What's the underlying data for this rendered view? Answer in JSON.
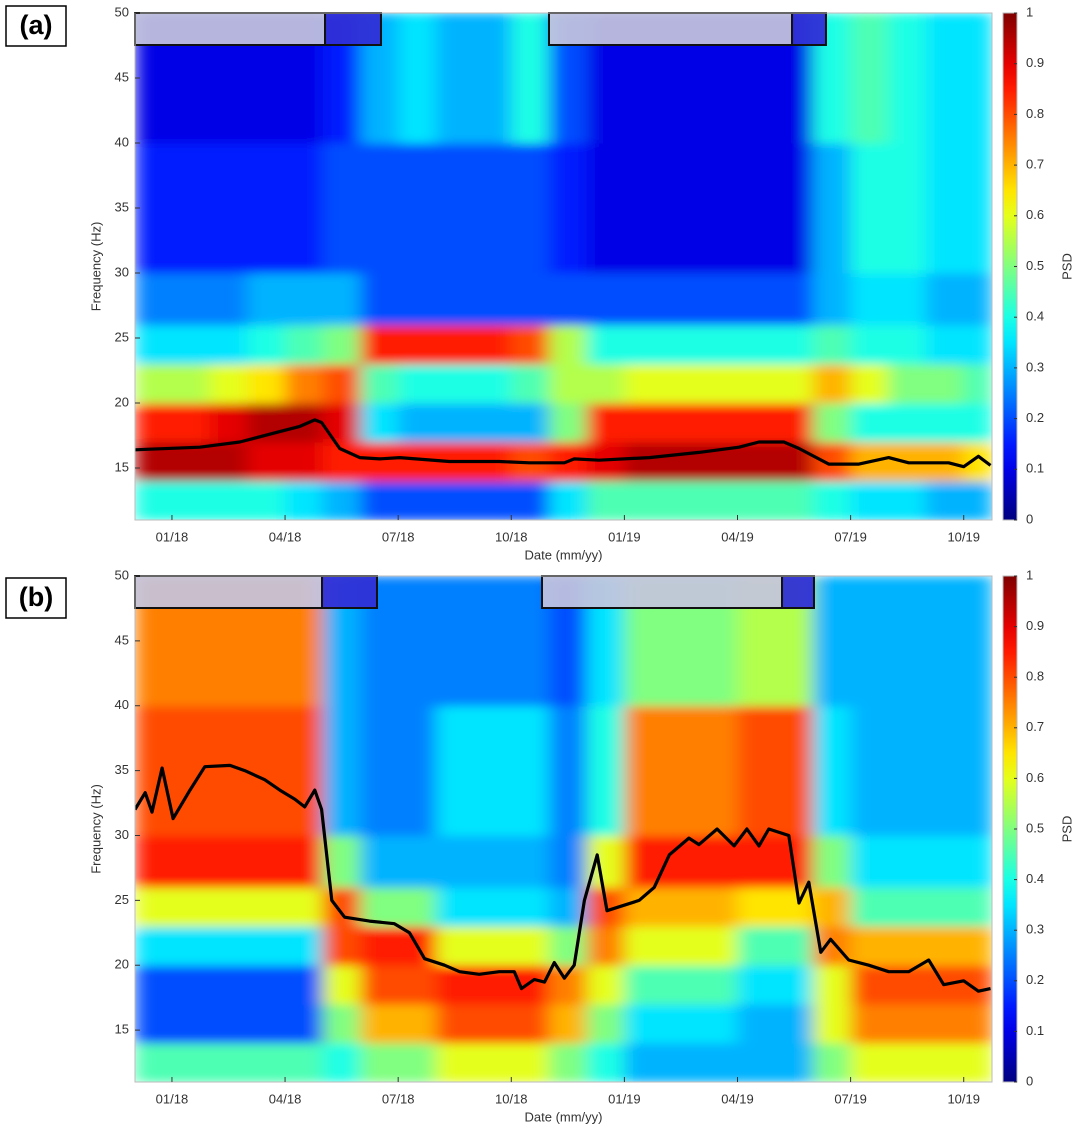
{
  "chart_data": [
    {
      "type": "heatmap",
      "panel_label": "(a)",
      "xlabel": "Date (mm/yy)",
      "ylabel": "Frequency (Hz)",
      "colorbar_label": "PSD",
      "colormap": "jet",
      "xlim": [
        -0.98,
        21.75
      ],
      "ylim": [
        11,
        50
      ],
      "xticks": [
        {
          "value": 0,
          "label": "01/18"
        },
        {
          "value": 3,
          "label": "04/18"
        },
        {
          "value": 6,
          "label": "07/18"
        },
        {
          "value": 9,
          "label": "10/18"
        },
        {
          "value": 12,
          "label": "01/19"
        },
        {
          "value": 15,
          "label": "04/19"
        },
        {
          "value": 18,
          "label": "07/19"
        },
        {
          "value": 21,
          "label": "10/19"
        }
      ],
      "yticks": [
        15,
        20,
        25,
        30,
        35,
        40,
        45,
        50
      ],
      "clim": [
        0,
        1
      ],
      "cticks": [
        0,
        0.1,
        0.2,
        0.3,
        0.4,
        0.5,
        0.6,
        0.7,
        0.8,
        0.9,
        1
      ],
      "x_edges": [
        -0.98,
        0,
        1,
        2,
        3,
        4,
        5,
        6,
        7,
        8,
        9,
        10,
        11,
        12,
        13,
        14,
        15,
        16,
        17,
        18,
        19,
        20,
        21,
        21.75
      ],
      "y_edges": [
        11,
        14,
        17,
        20,
        23,
        26,
        30,
        40,
        50
      ],
      "z": [
        [
          0.4,
          0.95,
          0.85,
          0.55,
          0.35,
          0.25,
          0.15,
          0.1
        ],
        [
          0.4,
          0.95,
          0.85,
          0.55,
          0.35,
          0.25,
          0.15,
          0.1
        ],
        [
          0.4,
          0.95,
          0.9,
          0.6,
          0.35,
          0.25,
          0.15,
          0.1
        ],
        [
          0.4,
          0.9,
          0.95,
          0.65,
          0.4,
          0.3,
          0.15,
          0.1
        ],
        [
          0.35,
          0.9,
          0.95,
          0.75,
          0.45,
          0.3,
          0.15,
          0.1
        ],
        [
          0.3,
          0.85,
          0.9,
          0.8,
          0.5,
          0.3,
          0.2,
          0.15
        ],
        [
          0.2,
          0.85,
          0.35,
          0.45,
          0.85,
          0.2,
          0.2,
          0.3
        ],
        [
          0.2,
          0.85,
          0.3,
          0.4,
          0.85,
          0.2,
          0.2,
          0.35
        ],
        [
          0.2,
          0.85,
          0.3,
          0.4,
          0.85,
          0.2,
          0.2,
          0.3
        ],
        [
          0.2,
          0.85,
          0.3,
          0.4,
          0.85,
          0.2,
          0.2,
          0.3
        ],
        [
          0.2,
          0.8,
          0.3,
          0.45,
          0.8,
          0.2,
          0.2,
          0.4
        ],
        [
          0.35,
          0.85,
          0.5,
          0.55,
          0.55,
          0.2,
          0.15,
          0.2
        ],
        [
          0.45,
          0.9,
          0.85,
          0.55,
          0.4,
          0.2,
          0.1,
          0.1
        ],
        [
          0.45,
          0.95,
          0.85,
          0.6,
          0.4,
          0.2,
          0.1,
          0.1
        ],
        [
          0.45,
          0.95,
          0.85,
          0.6,
          0.4,
          0.2,
          0.1,
          0.1
        ],
        [
          0.45,
          0.95,
          0.85,
          0.6,
          0.4,
          0.2,
          0.1,
          0.1
        ],
        [
          0.45,
          0.95,
          0.85,
          0.6,
          0.4,
          0.2,
          0.1,
          0.1
        ],
        [
          0.45,
          0.95,
          0.85,
          0.6,
          0.4,
          0.2,
          0.1,
          0.1
        ],
        [
          0.4,
          0.8,
          0.5,
          0.7,
          0.45,
          0.3,
          0.3,
          0.4
        ],
        [
          0.35,
          0.7,
          0.4,
          0.6,
          0.4,
          0.35,
          0.4,
          0.45
        ],
        [
          0.35,
          0.7,
          0.4,
          0.5,
          0.4,
          0.35,
          0.4,
          0.4
        ],
        [
          0.3,
          0.7,
          0.4,
          0.5,
          0.35,
          0.3,
          0.35,
          0.35
        ],
        [
          0.3,
          0.65,
          0.4,
          0.45,
          0.35,
          0.3,
          0.35,
          0.35
        ]
      ],
      "series": [
        {
          "color": "#000000",
          "x": [
            -0.98,
            0.74,
            1.8,
            2.86,
            3.39,
            3.79,
            3.97,
            4.45,
            4.98,
            5.51,
            6.04,
            7.36,
            8.68,
            9.48,
            10.41,
            10.67,
            11.33,
            12.66,
            13.98,
            15.04,
            15.57,
            16.23,
            16.63,
            17.42,
            18.22,
            19.01,
            19.54,
            20.6,
            21,
            21.39,
            21.71
          ],
          "values": [
            16.4,
            16.6,
            17,
            17.8,
            18.2,
            18.7,
            18.5,
            16.5,
            15.8,
            15.7,
            15.8,
            15.5,
            15.5,
            15.4,
            15.4,
            15.7,
            15.6,
            15.8,
            16.2,
            16.6,
            17,
            17,
            16.5,
            15.3,
            15.3,
            15.8,
            15.4,
            15.4,
            15.1,
            15.9,
            15.2
          ]
        }
      ]
    },
    {
      "type": "heatmap",
      "panel_label": "(b)",
      "xlabel": "Date (mm/yy)",
      "ylabel": "Frequency (Hz)",
      "colorbar_label": "PSD",
      "colormap": "jet",
      "xlim": [
        -0.98,
        21.75
      ],
      "ylim": [
        11,
        50
      ],
      "xticks": [
        {
          "value": 0,
          "label": "01/18"
        },
        {
          "value": 3,
          "label": "04/18"
        },
        {
          "value": 6,
          "label": "07/18"
        },
        {
          "value": 9,
          "label": "10/18"
        },
        {
          "value": 12,
          "label": "01/19"
        },
        {
          "value": 15,
          "label": "04/19"
        },
        {
          "value": 18,
          "label": "07/19"
        },
        {
          "value": 21,
          "label": "10/19"
        }
      ],
      "yticks": [
        15,
        20,
        25,
        30,
        35,
        40,
        45,
        50
      ],
      "clim": [
        0,
        1
      ],
      "cticks": [
        0,
        0.1,
        0.2,
        0.3,
        0.4,
        0.5,
        0.6,
        0.7,
        0.8,
        0.9,
        1
      ],
      "x_edges": [
        -0.98,
        0,
        1,
        2,
        3,
        4,
        5,
        6,
        7,
        8,
        9,
        10,
        11,
        12,
        13,
        14,
        15,
        16,
        17,
        18,
        19,
        20,
        21,
        21.75
      ],
      "y_edges": [
        11,
        14,
        17,
        20,
        23,
        26,
        30,
        40,
        50
      ],
      "z": [
        [
          0.45,
          0.2,
          0.2,
          0.35,
          0.6,
          0.85,
          0.8,
          0.75
        ],
        [
          0.45,
          0.2,
          0.2,
          0.35,
          0.6,
          0.85,
          0.8,
          0.75
        ],
        [
          0.45,
          0.2,
          0.2,
          0.35,
          0.6,
          0.85,
          0.8,
          0.75
        ],
        [
          0.45,
          0.2,
          0.2,
          0.35,
          0.6,
          0.85,
          0.8,
          0.75
        ],
        [
          0.45,
          0.2,
          0.2,
          0.35,
          0.6,
          0.85,
          0.8,
          0.75
        ],
        [
          0.4,
          0.5,
          0.6,
          0.8,
          0.8,
          0.5,
          0.3,
          0.3
        ],
        [
          0.5,
          0.7,
          0.8,
          0.85,
          0.5,
          0.3,
          0.25,
          0.25
        ],
        [
          0.5,
          0.7,
          0.8,
          0.85,
          0.5,
          0.3,
          0.25,
          0.25
        ],
        [
          0.6,
          0.8,
          0.85,
          0.6,
          0.35,
          0.3,
          0.35,
          0.25
        ],
        [
          0.6,
          0.8,
          0.85,
          0.6,
          0.35,
          0.3,
          0.35,
          0.25
        ],
        [
          0.6,
          0.8,
          0.85,
          0.6,
          0.35,
          0.3,
          0.35,
          0.25
        ],
        [
          0.5,
          0.7,
          0.75,
          0.5,
          0.3,
          0.25,
          0.25,
          0.2
        ],
        [
          0.4,
          0.5,
          0.6,
          0.75,
          0.8,
          0.6,
          0.4,
          0.35
        ],
        [
          0.3,
          0.35,
          0.45,
          0.6,
          0.7,
          0.85,
          0.75,
          0.5
        ],
        [
          0.3,
          0.35,
          0.45,
          0.6,
          0.7,
          0.85,
          0.75,
          0.5
        ],
        [
          0.3,
          0.35,
          0.45,
          0.6,
          0.7,
          0.85,
          0.75,
          0.5
        ],
        [
          0.3,
          0.3,
          0.35,
          0.45,
          0.65,
          0.85,
          0.8,
          0.55
        ],
        [
          0.3,
          0.3,
          0.35,
          0.45,
          0.65,
          0.85,
          0.8,
          0.55
        ],
        [
          0.5,
          0.6,
          0.6,
          0.75,
          0.7,
          0.5,
          0.35,
          0.3
        ],
        [
          0.6,
          0.75,
          0.8,
          0.7,
          0.45,
          0.35,
          0.3,
          0.3
        ],
        [
          0.6,
          0.75,
          0.8,
          0.7,
          0.45,
          0.35,
          0.3,
          0.3
        ],
        [
          0.6,
          0.75,
          0.8,
          0.7,
          0.45,
          0.35,
          0.3,
          0.3
        ],
        [
          0.6,
          0.75,
          0.8,
          0.7,
          0.45,
          0.35,
          0.3,
          0.3
        ]
      ],
      "series": [
        {
          "color": "#000000",
          "x": [
            -0.98,
            -0.71,
            -0.53,
            -0.26,
            0.03,
            0.48,
            0.87,
            1.54,
            1.93,
            2.46,
            2.86,
            3.26,
            3.52,
            3.79,
            3.97,
            4.24,
            4.58,
            5.24,
            5.9,
            6.3,
            6.7,
            7.23,
            7.63,
            8.15,
            8.68,
            9.08,
            9.27,
            9.61,
            9.88,
            10.14,
            10.41,
            10.67,
            10.94,
            11.28,
            11.54,
            11.86,
            12.39,
            12.79,
            13.19,
            13.71,
            13.98,
            14.46,
            14.91,
            15.25,
            15.57,
            15.83,
            16.36,
            16.63,
            16.89,
            17.21,
            17.47,
            17.95,
            18.48,
            19.01,
            19.54,
            20.07,
            20.47,
            21,
            21.39,
            21.71
          ],
          "values": [
            32,
            33.3,
            31.8,
            35.2,
            31.3,
            33.5,
            35.3,
            35.4,
            35,
            34.3,
            33.5,
            32.8,
            32.2,
            33.5,
            32,
            25,
            23.7,
            23.4,
            23.2,
            22.5,
            20.5,
            20,
            19.5,
            19.3,
            19.5,
            19.5,
            18.2,
            18.9,
            18.7,
            20.2,
            19,
            20,
            25,
            28.5,
            24.2,
            24.5,
            25,
            26,
            28.5,
            29.8,
            29.3,
            30.5,
            29.2,
            30.5,
            29.2,
            30.5,
            30,
            24.8,
            26.4,
            21,
            22,
            20.4,
            20,
            19.5,
            19.5,
            20.4,
            18.5,
            18.8,
            18,
            18.2
          ]
        }
      ]
    }
  ]
}
